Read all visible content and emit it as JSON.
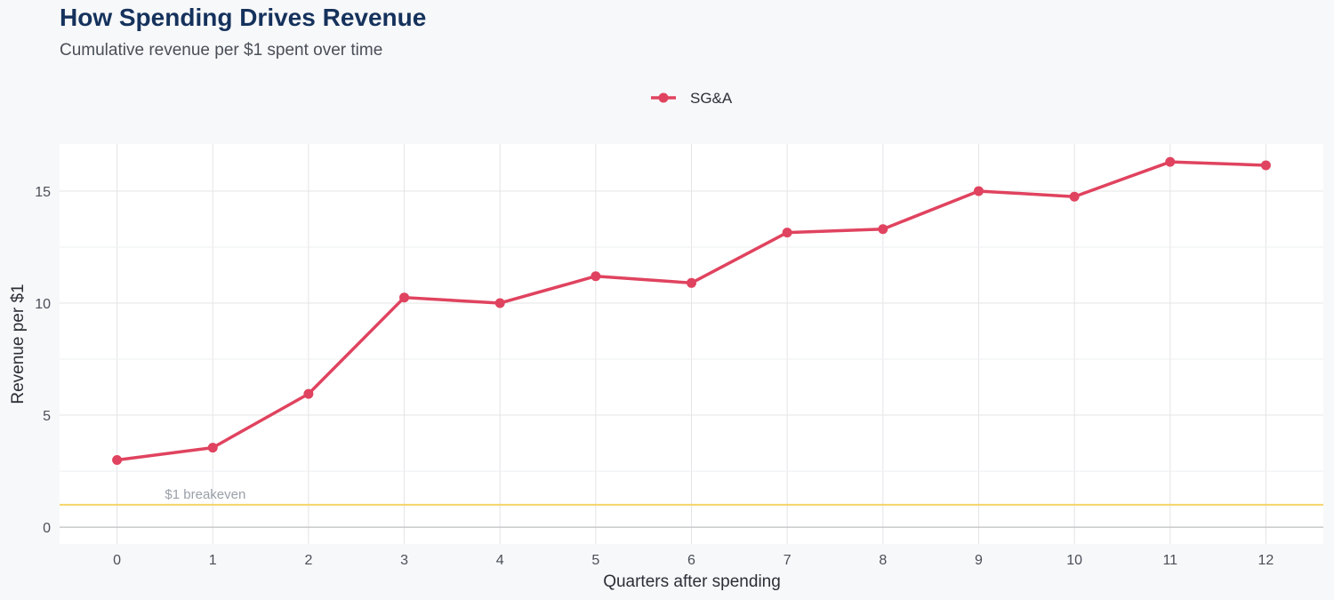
{
  "title": "How Spending Drives Revenue",
  "subtitle": "Cumulative revenue per $1 spent over time",
  "colors": {
    "series": "#e0435f",
    "breakeven": "#f7d469",
    "grid": "#e3e4e6",
    "panel": "#ffffff",
    "background": "#f7f8fa",
    "title": "#15325c"
  },
  "chart_data": {
    "type": "line",
    "xlabel": "Quarters after spending",
    "ylabel": "Revenue per $1",
    "x": [
      0,
      1,
      2,
      3,
      4,
      5,
      6,
      7,
      8,
      9,
      10,
      11,
      12
    ],
    "series": [
      {
        "name": "SG&A",
        "values": [
          3.0,
          3.55,
          5.95,
          10.25,
          10.0,
          11.2,
          10.9,
          13.15,
          13.3,
          15.0,
          14.75,
          16.3,
          16.15
        ]
      }
    ],
    "x_ticks": [
      "0",
      "1",
      "2",
      "3",
      "4",
      "5",
      "6",
      "7",
      "8",
      "9",
      "10",
      "11",
      "12"
    ],
    "y_ticks": [
      "0",
      "5",
      "10",
      "15"
    ],
    "xlim": [
      -0.6,
      12.6
    ],
    "ylim": [
      -0.75,
      17.1
    ],
    "grid": true,
    "legend_position": "top",
    "reference_line": {
      "y": 1,
      "label": "$1 breakeven"
    }
  }
}
